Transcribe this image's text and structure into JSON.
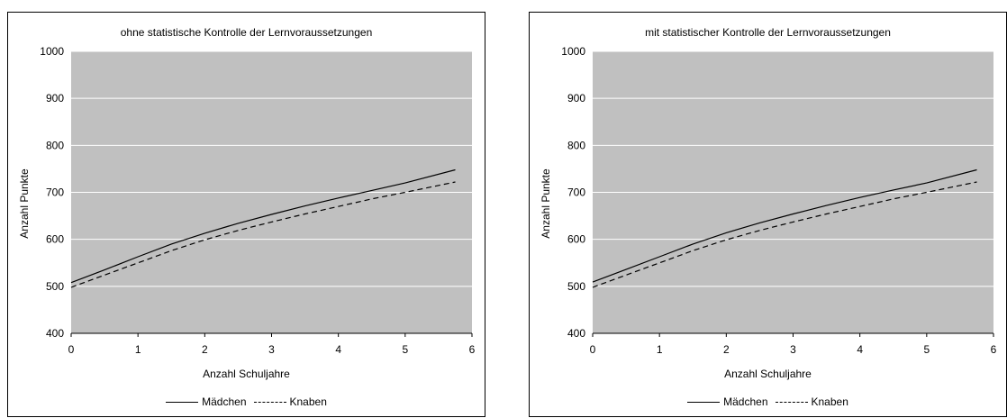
{
  "chart_data": [
    {
      "type": "line",
      "title": "ohne statistische Kontrolle der Lernvoraussetzungen",
      "xlabel": "Anzahl Schuljahre",
      "ylabel": "Anzahl Punkte",
      "xlim": [
        0,
        6
      ],
      "ylim": [
        400,
        1000
      ],
      "xticks": [
        "0",
        "1",
        "2",
        "3",
        "4",
        "5",
        "6"
      ],
      "yticks": [
        "400",
        "500",
        "600",
        "700",
        "800",
        "900",
        "1000"
      ],
      "grid": true,
      "plot_background": "#c0c0c0",
      "legend_position": "bottom",
      "series": [
        {
          "name": "Mädchen",
          "style": "solid",
          "x": [
            0,
            0.5,
            1,
            1.5,
            2,
            2.5,
            3,
            3.5,
            4,
            4.5,
            5,
            5.75
          ],
          "y": [
            508,
            535,
            563,
            590,
            613,
            634,
            653,
            671,
            688,
            704,
            720,
            748
          ]
        },
        {
          "name": "Knaben",
          "style": "dashed",
          "x": [
            0,
            0.5,
            1,
            1.5,
            2,
            2.5,
            3,
            3.5,
            4,
            4.5,
            5,
            5.75
          ],
          "y": [
            498,
            524,
            550,
            576,
            599,
            619,
            637,
            654,
            670,
            686,
            700,
            722
          ]
        }
      ]
    },
    {
      "type": "line",
      "title": "mit statistischer Kontrolle der Lernvoraussetzungen",
      "xlabel": "Anzahl Schuljahre",
      "ylabel": "Anzahl Punkte",
      "xlim": [
        0,
        6
      ],
      "ylim": [
        400,
        1000
      ],
      "xticks": [
        "0",
        "1",
        "2",
        "3",
        "4",
        "5",
        "6"
      ],
      "yticks": [
        "400",
        "500",
        "600",
        "700",
        "800",
        "900",
        "1000"
      ],
      "grid": true,
      "plot_background": "#c0c0c0",
      "legend_position": "bottom",
      "series": [
        {
          "name": "Mädchen",
          "style": "solid",
          "x": [
            0,
            0.5,
            1,
            1.5,
            2,
            2.5,
            3,
            3.5,
            4,
            4.5,
            5,
            5.75
          ],
          "y": [
            509,
            536,
            563,
            590,
            614,
            635,
            654,
            672,
            689,
            705,
            720,
            748
          ]
        },
        {
          "name": "Knaben",
          "style": "dashed",
          "x": [
            0,
            0.5,
            1,
            1.5,
            2,
            2.5,
            3,
            3.5,
            4,
            4.5,
            5,
            5.75
          ],
          "y": [
            498,
            524,
            550,
            576,
            599,
            619,
            637,
            654,
            670,
            686,
            700,
            722
          ]
        }
      ]
    }
  ]
}
